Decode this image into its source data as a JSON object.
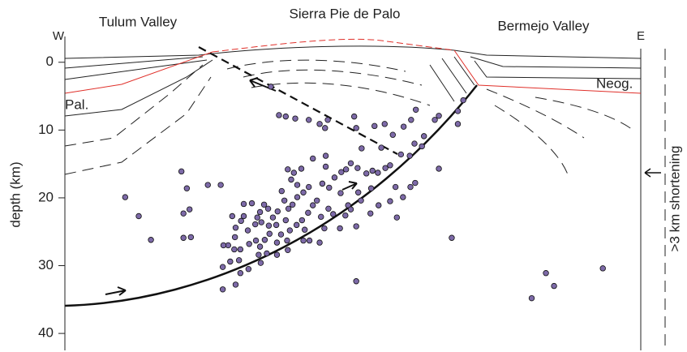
{
  "chart_data": {
    "type": "scatter",
    "top_labels": [
      "Tulum Valley",
      "Sierra Pie de Palo",
      "Bermejo Valley"
    ],
    "west_label": "W",
    "east_label": "E",
    "annotations": [
      "Pal.",
      "Neog.",
      ">3 km shortening"
    ],
    "ylabel": "depth (km)",
    "ylim": [
      -3.8,
      42.5
    ],
    "yticks": [
      0,
      10,
      20,
      30,
      40
    ],
    "xlim": [
      0,
      85
    ],
    "color": "#7d6aa8",
    "x": [
      30.4,
      31.6,
      32.6,
      34.0,
      36.0,
      37.6,
      38.4,
      38.8,
      42.7,
      43.0,
      45.7,
      47.2,
      50.0,
      51.1,
      51.8,
      54.6,
      55.2,
      58.0,
      58.8,
      58.0,
      43.8,
      46.7,
      48.4,
      49.6,
      50.9,
      51.6,
      52.7,
      53.0,
      55.2,
      17.2,
      8.9,
      10.9,
      12.7,
      18.0,
      18.4,
      17.5,
      17.5,
      18.6,
      21.1,
      23.0,
      32.9,
      33.4,
      33.8,
      34.9,
      34.3,
      36.6,
      38.5,
      38.5,
      39.8,
      40.8,
      41.5,
      42.2,
      43.2,
      44.5,
      45.4,
      46.2,
      47.3,
      48.0,
      48.8,
      45.2,
      46.3,
      43.3,
      43.7,
      40.7,
      41.8,
      39.0,
      38.0,
      36.0,
      35.2,
      34.3,
      33.6,
      33.0,
      32.4,
      32.0,
      31.4,
      30.7,
      30.0,
      29.4,
      28.8,
      28.4,
      28.1,
      27.0,
      26.4,
      26.0,
      25.2,
      25.1,
      24.1,
      23.4,
      25.0,
      25.9,
      27.2,
      28.2,
      28.8,
      29.5,
      30.2,
      31.3,
      31.9,
      32.8,
      33.2,
      34.2,
      35.0,
      35.9,
      36.6,
      37.2,
      37.8,
      38.3,
      38.9,
      39.6,
      40.6,
      41.4,
      42.2,
      43.0,
      45.1,
      49.0,
      49.9,
      51.0,
      51.7,
      48.0,
      24.7,
      26.4,
      27.6,
      29.0,
      30.1,
      31.2,
      32.6,
      35.4,
      36.1,
      37.6,
      35.2,
      32.9,
      31.3,
      29.8,
      28.6,
      25.7,
      24.4,
      23.3,
      27.1,
      25.9,
      25.2,
      23.3,
      28.9,
      57.1,
      43.0,
      71.0,
      72.2,
      68.9,
      79.4
    ],
    "y": [
      3.6,
      7.8,
      8.0,
      8.3,
      8.5,
      9.1,
      9.7,
      8.5,
      8.0,
      9.7,
      9.4,
      9.1,
      9.5,
      8.5,
      7.0,
      8.5,
      7.9,
      9.1,
      5.6,
      7.2,
      12.7,
      12.6,
      10.7,
      13.6,
      13.8,
      12.0,
      12.4,
      10.9,
      15.7,
      16.1,
      19.9,
      22.7,
      26.2,
      18.6,
      21.7,
      22.3,
      25.9,
      25.8,
      18.1,
      18.1,
      15.8,
      17.3,
      16.3,
      15.7,
      18.1,
      14.2,
      13.8,
      15.4,
      17.0,
      16.2,
      15.8,
      14.9,
      15.6,
      16.4,
      16.0,
      16.3,
      15.6,
      15.2,
      18.4,
      18.6,
      21.1,
      19.2,
      20.4,
      19.3,
      21.1,
      18.5,
      17.9,
      18.4,
      19.2,
      19.9,
      21.0,
      21.6,
      20.4,
      19.0,
      22.0,
      22.9,
      21.6,
      21.0,
      22.1,
      22.9,
      23.9,
      24.8,
      22.7,
      23.4,
      24.4,
      25.8,
      27.0,
      27.0,
      27.6,
      27.6,
      26.8,
      26.3,
      27.2,
      26.2,
      25.3,
      26.6,
      25.4,
      26.3,
      24.8,
      24.0,
      23.3,
      22.2,
      21.1,
      20.4,
      22.8,
      24.5,
      21.6,
      22.4,
      24.5,
      22.6,
      21.7,
      24.2,
      22.3,
      22.9,
      19.9,
      18.4,
      17.8,
      20.5,
      22.7,
      20.9,
      20.8,
      23.6,
      24.1,
      24.0,
      23.3,
      24.7,
      26.3,
      26.6,
      26.3,
      27.7,
      28.4,
      28.2,
      28.4,
      29.2,
      29.4,
      30.2,
      30.5,
      31.1,
      32.8,
      33.5,
      29.6,
      25.9,
      32.3,
      31.1,
      33.0,
      34.8,
      30.4
    ]
  }
}
